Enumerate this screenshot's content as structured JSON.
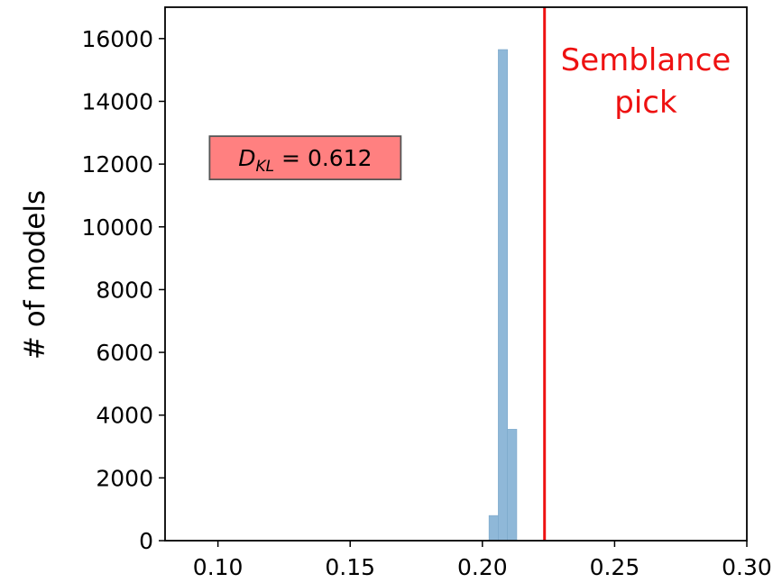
{
  "chart_data": {
    "type": "bar",
    "title": "",
    "xlabel": "",
    "ylabel": "# of models",
    "xlim": [
      0.08,
      0.3
    ],
    "ylim": [
      0,
      17000
    ],
    "x_ticks": [
      {
        "value": 0.1,
        "label": "0.10"
      },
      {
        "value": 0.15,
        "label": "0.15"
      },
      {
        "value": 0.2,
        "label": "0.20"
      },
      {
        "value": 0.25,
        "label": "0.25"
      },
      {
        "value": 0.3,
        "label": "0.30"
      }
    ],
    "y_ticks": [
      {
        "value": 0,
        "label": "0"
      },
      {
        "value": 2000,
        "label": "2000"
      },
      {
        "value": 4000,
        "label": "4000"
      },
      {
        "value": 6000,
        "label": "6000"
      },
      {
        "value": 8000,
        "label": "8000"
      },
      {
        "value": 10000,
        "label": "10000"
      },
      {
        "value": 12000,
        "label": "12000"
      },
      {
        "value": 14000,
        "label": "14000"
      },
      {
        "value": 16000,
        "label": "16000"
      }
    ],
    "histogram": {
      "color": "#8fb8d8",
      "bins": [
        {
          "x0": 0.2025,
          "x1": 0.206,
          "count": 800
        },
        {
          "x0": 0.206,
          "x1": 0.2095,
          "count": 15650
        },
        {
          "x0": 0.2095,
          "x1": 0.213,
          "count": 3550
        }
      ]
    },
    "vline": {
      "x": 0.2235,
      "color": "#ee1111",
      "label_lines": [
        "Semblance",
        "pick"
      ]
    },
    "annotation_box": {
      "symbol": "D",
      "subscript": "KL",
      "text": " = 0.612",
      "fill": "#ff8080",
      "data_x": 0.133,
      "data_y": 12200
    },
    "grid": false,
    "legend": "none"
  }
}
